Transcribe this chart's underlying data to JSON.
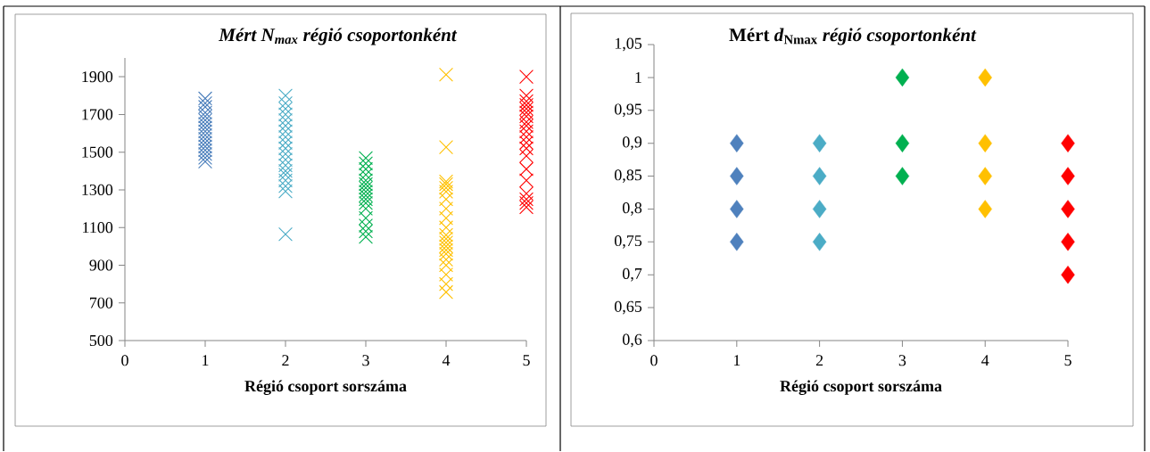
{
  "chart_data": [
    {
      "type": "scatter",
      "title": "Mért N$_{max}$ régió csoportonként",
      "xlabel": "Régió csoport sorszáma",
      "marker": "cross",
      "xlim": [
        0,
        5
      ],
      "xticks": [
        0,
        1,
        2,
        3,
        4,
        5
      ],
      "ylim": [
        500,
        2000
      ],
      "yticks": [
        500,
        700,
        900,
        1100,
        1300,
        1500,
        1700,
        1900
      ],
      "series": [
        {
          "color": "#4a7ebb",
          "x": [
            1,
            1,
            1,
            1,
            1,
            1,
            1,
            1,
            1,
            1,
            1,
            1,
            1,
            1,
            1,
            1,
            1
          ],
          "values": [
            1450,
            1470,
            1490,
            1510,
            1530,
            1550,
            1570,
            1590,
            1610,
            1630,
            1650,
            1670,
            1690,
            1710,
            1740,
            1760,
            1785
          ]
        },
        {
          "color": "#4bacc6",
          "x": [
            2,
            2,
            2,
            2,
            2,
            2,
            2,
            2,
            2,
            2,
            2,
            2,
            2,
            2,
            2,
            2,
            2,
            2,
            2
          ],
          "values": [
            1064,
            1292,
            1320,
            1350,
            1380,
            1400,
            1430,
            1460,
            1490,
            1520,
            1550,
            1580,
            1610,
            1640,
            1670,
            1700,
            1730,
            1760,
            1800
          ]
        },
        {
          "color": "#00b050",
          "x": [
            3,
            3,
            3,
            3,
            3,
            3,
            3,
            3,
            3,
            3,
            3,
            3,
            3,
            3,
            3,
            3
          ],
          "values": [
            1050,
            1080,
            1110,
            1150,
            1200,
            1230,
            1250,
            1270,
            1290,
            1310,
            1330,
            1350,
            1380,
            1410,
            1440,
            1469
          ]
        },
        {
          "color": "#ffc000",
          "x": [
            4,
            4,
            4,
            4,
            4,
            4,
            4,
            4,
            4,
            4,
            4,
            4,
            4,
            4,
            4,
            4,
            4,
            4,
            4,
            4,
            4
          ],
          "values": [
            757,
            800,
            850,
            900,
            930,
            960,
            980,
            1000,
            1020,
            1040,
            1060,
            1100,
            1150,
            1200,
            1250,
            1290,
            1310,
            1330,
            1344,
            1526,
            1911
          ]
        },
        {
          "color": "#ff0000",
          "x": [
            5,
            5,
            5,
            5,
            5,
            5,
            5,
            5,
            5,
            5,
            5,
            5,
            5,
            5,
            5,
            5,
            5,
            5,
            5,
            5
          ],
          "values": [
            1208,
            1230,
            1250,
            1280,
            1350,
            1410,
            1480,
            1520,
            1550,
            1580,
            1610,
            1640,
            1660,
            1690,
            1710,
            1730,
            1750,
            1770,
            1800,
            1900
          ]
        }
      ]
    },
    {
      "type": "scatter",
      "title": "Mért *d*$_{Nmax}$ *régió csoportonként*",
      "xlabel": "Régió csoport sorszáma",
      "marker": "diamond",
      "xlim": [
        0,
        5
      ],
      "xticks": [
        0,
        1,
        2,
        3,
        4,
        5
      ],
      "ylim": [
        0.6,
        1.05
      ],
      "yticks": [
        {
          "value": 0.6,
          "label": "0,6"
        },
        {
          "value": 0.65,
          "label": "0,65"
        },
        {
          "value": 0.7,
          "label": "0,7"
        },
        {
          "value": 0.75,
          "label": "0,75"
        },
        {
          "value": 0.8,
          "label": "0,8"
        },
        {
          "value": 0.85,
          "label": "0,85"
        },
        {
          "value": 0.9,
          "label": "0,9"
        },
        {
          "value": 0.95,
          "label": "0,95"
        },
        1,
        {
          "value": 1.05,
          "label": "1,05"
        }
      ],
      "series": [
        {
          "color": "#4f81bd",
          "x": [
            1,
            1,
            1,
            1
          ],
          "values": [
            0.75,
            0.8,
            0.85,
            0.9
          ]
        },
        {
          "color": "#4bacc6",
          "x": [
            2,
            2,
            2,
            2
          ],
          "values": [
            0.75,
            0.8,
            0.85,
            0.9
          ]
        },
        {
          "color": "#00b050",
          "x": [
            3,
            3,
            3
          ],
          "values": [
            0.85,
            0.9,
            1
          ]
        },
        {
          "color": "#ffc000",
          "x": [
            4,
            4,
            4,
            4
          ],
          "values": [
            0.8,
            0.85,
            0.9,
            1
          ]
        },
        {
          "color": "#ff0000",
          "x": [
            5,
            5,
            5,
            5,
            5
          ],
          "values": [
            0.7,
            0.75,
            0.8,
            0.85,
            0.9
          ]
        }
      ]
    }
  ]
}
